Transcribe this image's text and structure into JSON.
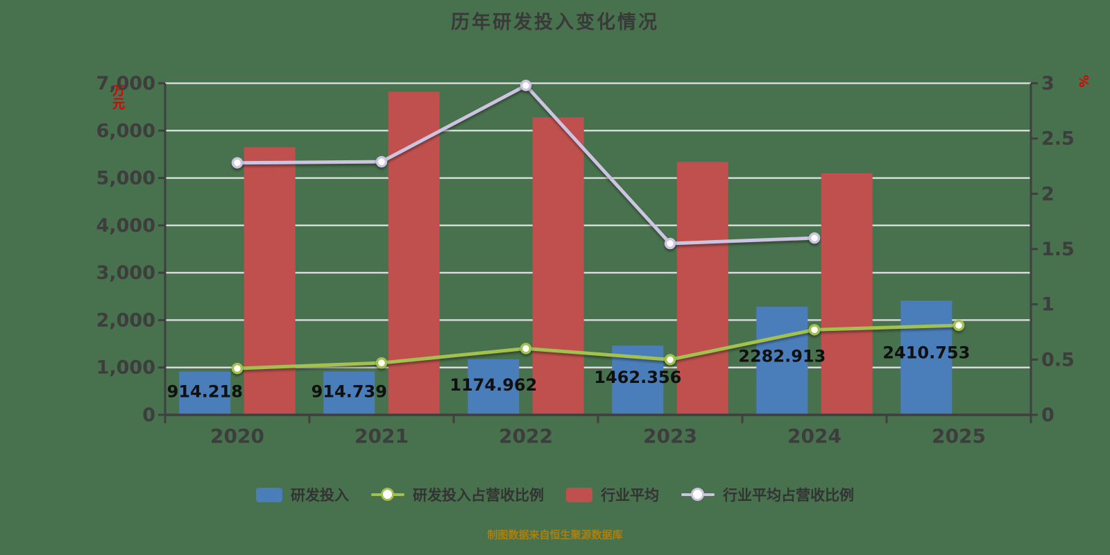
{
  "title": "历年研发投入变化情况",
  "caption": "制图数据来自恒生聚源数据库",
  "colors": {
    "background": "#48714D",
    "grid": "#D9D9D9",
    "axis": "#3F3F3F",
    "tick_text": "#3D3D3D",
    "bar_label_text": "#101010",
    "rd_bar": "#4A7EBB",
    "industry_bar": "#C0504D",
    "rd_ratio_line": "#A2C14E",
    "industry_ratio_line": "#CCC4E0",
    "unit_text": "#E00000",
    "caption_text": "#AA800F"
  },
  "legend": [
    {
      "label": "研发投入",
      "swatch": "rect",
      "color": "#4A7EBB"
    },
    {
      "label": "研发投入占营收比例",
      "swatch": "line",
      "color": "#A2C14E"
    },
    {
      "label": "行业平均",
      "swatch": "rect",
      "color": "#C0504D"
    },
    {
      "label": "行业平均占营收比例",
      "swatch": "line",
      "color": "#CCC4E0"
    }
  ],
  "chart_data": {
    "type": "bar",
    "subtype": "combo-bar-line",
    "title": "历年研发投入变化情况",
    "categories": [
      "2020",
      "2021",
      "2022",
      "2023",
      "2024",
      "2025"
    ],
    "series": [
      {
        "key": "rd-investment",
        "name": "研发投入",
        "type": "bar",
        "axis": "left",
        "color": "#4A7EBB",
        "values": [
          914.218,
          914.739,
          1174.962,
          1462.356,
          2282.913,
          2410.753
        ],
        "labels": [
          "914.218",
          "914.739",
          "1174.962",
          "1462.356",
          "2282.913",
          "2410.753"
        ]
      },
      {
        "key": "industry-avg",
        "name": "行业平均",
        "type": "bar",
        "axis": "left",
        "color": "#C0504D",
        "values": [
          5650,
          6820,
          6280,
          5340,
          5100,
          null
        ],
        "labels": [
          null,
          null,
          null,
          null,
          null,
          null
        ]
      },
      {
        "key": "rd-ratio",
        "name": "研发投入占营收比例",
        "type": "line",
        "axis": "right",
        "color": "#A2C14E",
        "values": [
          0.42,
          0.47,
          0.6,
          0.5,
          0.77,
          0.81
        ]
      },
      {
        "key": "industry-ratio",
        "name": "行业平均占营收比例",
        "type": "line",
        "axis": "right",
        "color": "#CCC4E0",
        "values": [
          2.28,
          2.29,
          2.98,
          1.55,
          1.6,
          null
        ]
      }
    ],
    "y_left": {
      "min": 0,
      "max": 7000,
      "step": 1000,
      "unit": "万元",
      "tick_labels": [
        "0",
        "1,000",
        "2,000",
        "3,000",
        "4,000",
        "5,000",
        "6,000",
        "7,000"
      ]
    },
    "y_right": {
      "min": 0,
      "max": 3,
      "step": 0.5,
      "unit": "%",
      "tick_labels": [
        "0",
        "0.5",
        "1",
        "1.5",
        "2",
        "2.5",
        "3"
      ]
    },
    "grid": true,
    "legend_position": "bottom"
  }
}
